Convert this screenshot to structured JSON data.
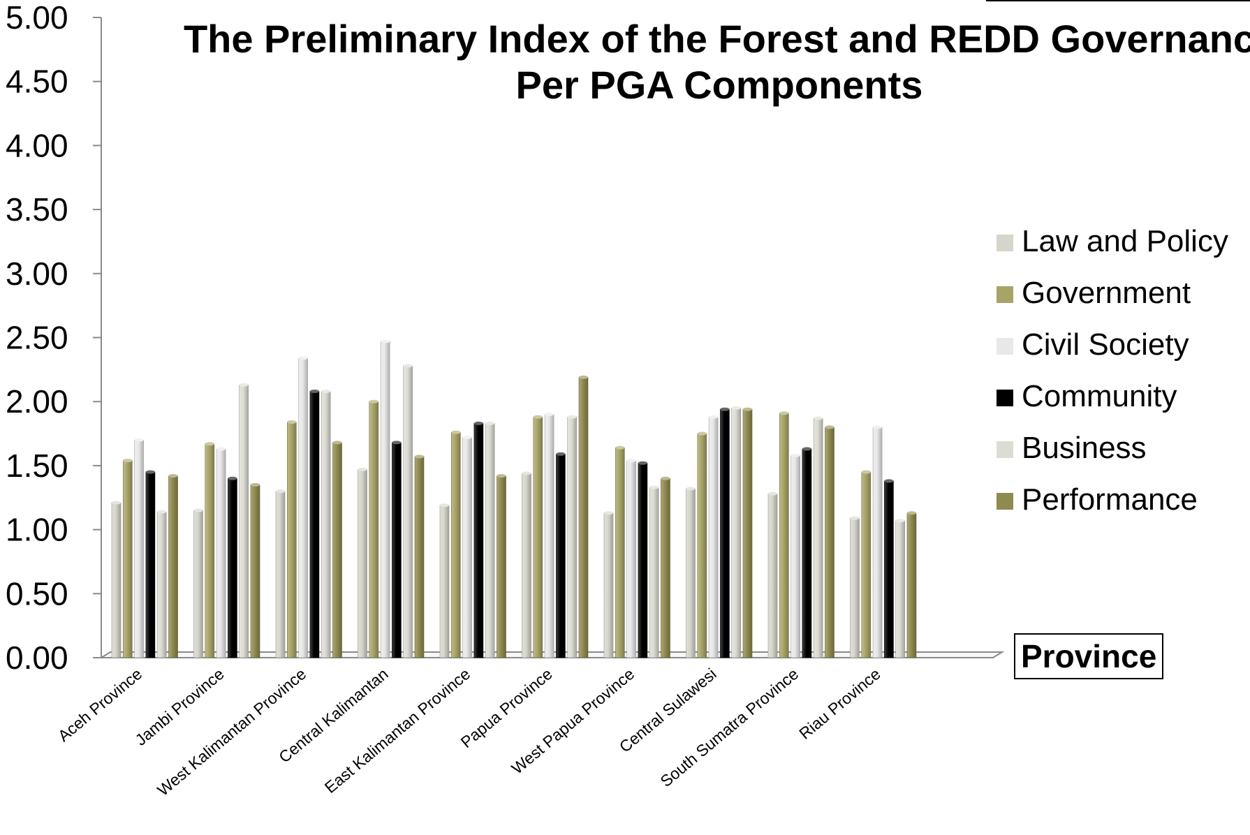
{
  "chart_data": {
    "type": "bar",
    "title_lines": [
      "The Preliminary Index of the Forest and REDD Governanc",
      "Per PGA Components"
    ],
    "xlabel": "Province",
    "ylabel": "",
    "ylim": [
      0,
      5
    ],
    "yticks": [
      "0.00",
      "0.50",
      "1.00",
      "1.50",
      "2.00",
      "2.50",
      "3.00",
      "3.50",
      "4.00",
      "4.50",
      "5.00"
    ],
    "legend_position": "right",
    "grid": false,
    "categories": [
      "Aceh Province",
      "Jambi Province",
      "West Kalimantan Province",
      "Central Kalimantan",
      "East Kalimantan Province",
      "Papua Province",
      "West Papua Province",
      "Central Sulawesi",
      "South Sumatra Province",
      "Riau Province"
    ],
    "series": [
      {
        "name": "Law and Policy",
        "color": "#d6d5cb",
        "values": [
          1.21,
          1.15,
          1.3,
          1.47,
          1.19,
          1.44,
          1.13,
          1.32,
          1.28,
          1.09
        ]
      },
      {
        "name": "Government",
        "color": "#a8a467",
        "values": [
          1.54,
          1.67,
          1.84,
          2.0,
          1.76,
          1.88,
          1.64,
          1.75,
          1.91,
          1.45
        ]
      },
      {
        "name": "Civil Society",
        "color": "#e8e8e8",
        "values": [
          1.7,
          1.63,
          2.34,
          2.47,
          1.72,
          1.9,
          1.54,
          1.88,
          1.58,
          1.8
        ]
      },
      {
        "name": "Community",
        "color": "#000000",
        "values": [
          1.45,
          1.4,
          2.08,
          1.68,
          1.83,
          1.59,
          1.52,
          1.94,
          1.63,
          1.38
        ]
      },
      {
        "name": "Business",
        "color": "#dcdcd4",
        "values": [
          1.14,
          2.13,
          2.08,
          2.28,
          1.83,
          1.88,
          1.33,
          1.95,
          1.87,
          1.07
        ]
      },
      {
        "name": "Performance",
        "color": "#8f8a4e",
        "values": [
          1.42,
          1.35,
          1.68,
          1.57,
          1.42,
          2.19,
          1.4,
          1.94,
          1.8,
          1.13
        ]
      }
    ]
  }
}
